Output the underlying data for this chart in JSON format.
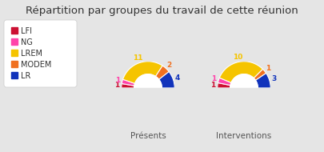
{
  "title": "Répartition par groupes du travail de cette réunion",
  "title_fontsize": 9.5,
  "background_color": "#e5e5e5",
  "legend_bg": "#ffffff",
  "legend_items": [
    "LFI",
    "NG",
    "LREM",
    "MODEM",
    "LR"
  ],
  "colors": {
    "LFI": "#cc1133",
    "NG": "#ff44aa",
    "LREM": "#f5c400",
    "MODEM": "#f07020",
    "LR": "#1133bb"
  },
  "presents": {
    "label": "Présents",
    "values": {
      "LFI": 1,
      "NG": 1,
      "LREM": 11,
      "MODEM": 2,
      "LR": 4
    }
  },
  "interventions": {
    "label": "Interventions",
    "values": {
      "LFI": 1,
      "NG": 1,
      "LREM": 10,
      "MODEM": 1,
      "LR": 3
    }
  },
  "label_fontsize": 6.5,
  "legend_fontsize": 7,
  "subtitle_fontsize": 7.5
}
